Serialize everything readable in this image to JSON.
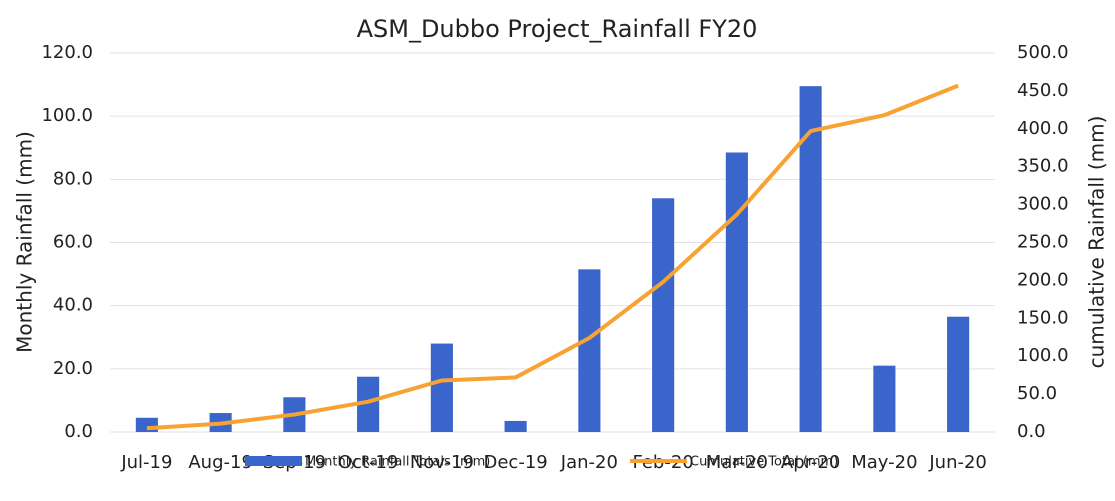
{
  "chart_data": {
    "type": "bar_line",
    "title": "ASM_Dubbo Project_Rainfall FY20",
    "categories": [
      "Jul-19",
      "Aug-19",
      "Sep-19",
      "Oct-19",
      "Nov-19",
      "Dec-19",
      "Jan-20",
      "Feb-20",
      "Mar-20",
      "Apr-20",
      "May-20",
      "Jun-20"
    ],
    "series": [
      {
        "name": "Monthly Rainfall Totals (mm)",
        "type": "bar",
        "color": "#3a66cc",
        "axis": "y",
        "values": [
          4.5,
          6,
          11,
          17.5,
          28,
          3.5,
          51.5,
          74,
          88.5,
          109.5,
          21,
          36.5
        ]
      },
      {
        "name": "Cumulative Total (mm)",
        "type": "line",
        "color": "#f7a233",
        "axis": "y2",
        "values": [
          5,
          11,
          23,
          40,
          68,
          72,
          124,
          198,
          287,
          397,
          418,
          457
        ]
      }
    ],
    "ylabel": "Monthly Rainfall (mm)",
    "y2label": "cumulative Rainfall (mm)",
    "ylim": [
      0,
      120
    ],
    "yticks": [
      {
        "value": 0,
        "label": "0.0"
      },
      {
        "value": 20,
        "label": "20.0"
      },
      {
        "value": 40,
        "label": "40.0"
      },
      {
        "value": 60,
        "label": "60.0"
      },
      {
        "value": 80,
        "label": "80.0"
      },
      {
        "value": 100,
        "label": "100.0"
      },
      {
        "value": 120,
        "label": "120.0"
      }
    ],
    "y2lim": [
      0,
      500
    ],
    "y2ticks": [
      {
        "value": 0,
        "label": "0.0"
      },
      {
        "value": 50,
        "label": "50.0"
      },
      {
        "value": 100,
        "label": "100.0"
      },
      {
        "value": 150,
        "label": "150.0"
      },
      {
        "value": 200,
        "label": "200.0"
      },
      {
        "value": 250,
        "label": "250.0"
      },
      {
        "value": 300,
        "label": "300.0"
      },
      {
        "value": 350,
        "label": "350.0"
      },
      {
        "value": 400,
        "label": "400.0"
      },
      {
        "value": 450,
        "label": "450.0"
      },
      {
        "value": 500,
        "label": "500.0"
      }
    ],
    "grid": true,
    "legend": "bottom"
  }
}
